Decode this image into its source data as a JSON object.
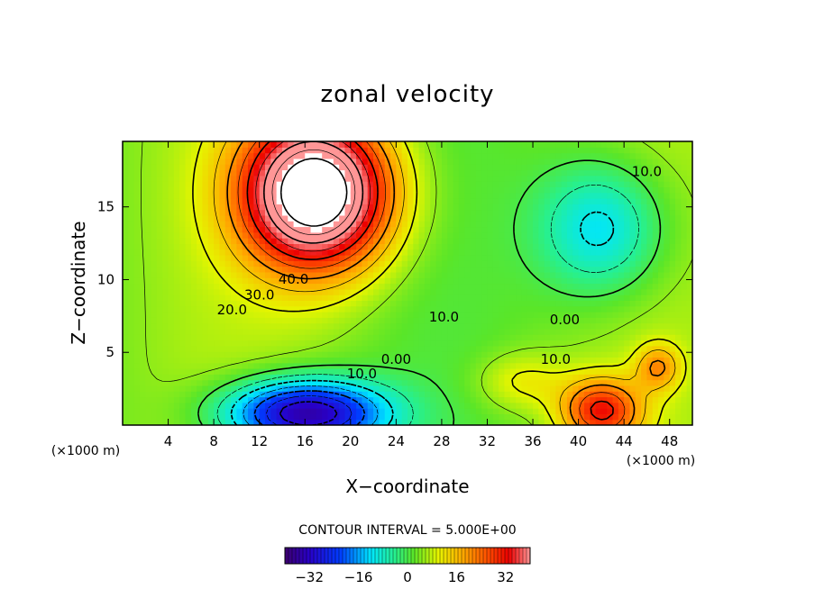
{
  "chart_data": {
    "type": "heatmap",
    "title": "zonal velocity",
    "xlabel": "X−coordinate",
    "ylabel": "Z−coordinate",
    "x_unit_label": "(×1000 m)",
    "y_unit_label": "(×1000 m)",
    "xlim": [
      0,
      50
    ],
    "ylim": [
      0,
      19.5
    ],
    "x_ticks": [
      4,
      8,
      12,
      16,
      20,
      24,
      28,
      32,
      36,
      40,
      44,
      48
    ],
    "y_ticks": [
      5,
      10,
      15
    ],
    "x_tick_labels": [
      "4",
      "8",
      "12",
      "16",
      "20",
      "24",
      "28",
      "32",
      "36",
      "40",
      "44",
      "48"
    ],
    "y_tick_labels": [
      "5",
      "10",
      "15"
    ],
    "contour_interval_label": "CONTOUR INTERVAL = 5.000E+00",
    "colorbar": {
      "range": [
        -40,
        40
      ],
      "ticks": [
        -32,
        -16,
        0,
        16,
        32
      ],
      "tick_labels": [
        "−32",
        "−16",
        "0",
        "16",
        "32"
      ]
    },
    "features": [
      {
        "kind": "max",
        "x": 17,
        "z": 16.5,
        "value": 55
      },
      {
        "kind": "min",
        "x": 16,
        "z": 1.0,
        "value": -34
      },
      {
        "kind": "min",
        "x": 42,
        "z": 13.0,
        "value": -15
      },
      {
        "kind": "max",
        "x": 42,
        "z": 1.0,
        "value": 27
      },
      {
        "kind": "max",
        "x": 47,
        "z": 4.0,
        "value": 20
      }
    ],
    "contour_labels": [
      {
        "text": "40.0",
        "x": 15.0,
        "z": 10.0
      },
      {
        "text": "30.0",
        "x": 12.0,
        "z": 8.9
      },
      {
        "text": "20.0",
        "x": 9.6,
        "z": 7.9
      },
      {
        "text": "10.0",
        "x": 28.2,
        "z": 7.4
      },
      {
        "text": "0.00",
        "x": 38.8,
        "z": 7.2
      },
      {
        "text": "10.0",
        "x": 38.0,
        "z": 4.5
      },
      {
        "text": "0.00",
        "x": 24.0,
        "z": 4.5
      },
      {
        "text": "10.0",
        "x": 21.0,
        "z": 3.5
      },
      {
        "text": "10.0",
        "x": 46.0,
        "z": 17.4
      }
    ]
  }
}
